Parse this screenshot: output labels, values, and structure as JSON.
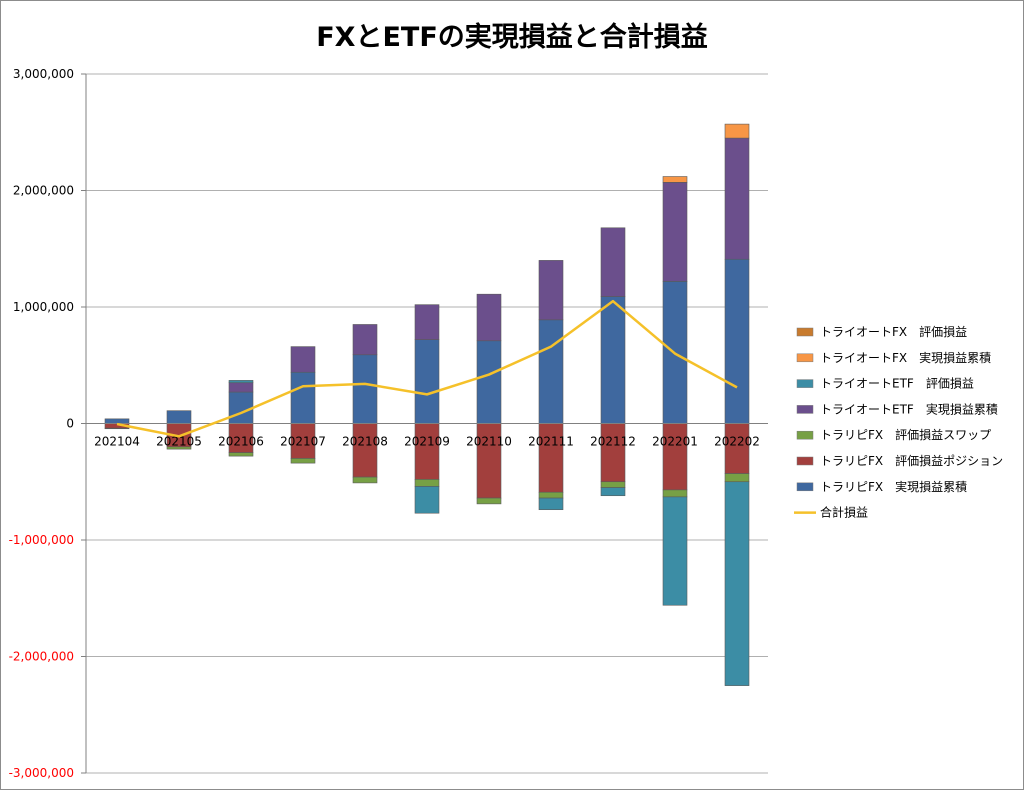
{
  "chart_data": {
    "type": "bar",
    "stacked": true,
    "title": "FXとETFの実現損益と合計損益",
    "xlabel": "",
    "ylabel": "",
    "ylim": [
      -3000000,
      3000000
    ],
    "y_ticks": [
      {
        "value": 3000000,
        "label": "3,000,000"
      },
      {
        "value": 2000000,
        "label": "2,000,000"
      },
      {
        "value": 1000000,
        "label": "1,000,000"
      },
      {
        "value": 0,
        "label": "0"
      },
      {
        "value": -1000000,
        "label": "-1,000,000"
      },
      {
        "value": -2000000,
        "label": "-2,000,000"
      },
      {
        "value": -3000000,
        "label": "-3,000,000"
      }
    ],
    "negative_tick_color": "#ff0000",
    "grid": true,
    "legend_position": "right",
    "categories": [
      "202104",
      "202105",
      "202106",
      "202107",
      "202108",
      "202109",
      "202110",
      "202111",
      "202112",
      "202201",
      "202202"
    ],
    "series": [
      {
        "name": "トライオートFX　評価損益",
        "kind": "bar",
        "color": "#c87b2e",
        "values": [
          0,
          0,
          0,
          0,
          0,
          0,
          0,
          0,
          0,
          0,
          0
        ]
      },
      {
        "name": "トライオートFX　実現損益累積",
        "kind": "bar",
        "color": "#f79646",
        "values": [
          0,
          0,
          0,
          0,
          0,
          0,
          0,
          0,
          0,
          50000,
          120000
        ]
      },
      {
        "name": "トライオートETF　評価損益",
        "kind": "bar",
        "color": "#3c8da5",
        "values": [
          0,
          0,
          20000,
          0,
          0,
          -230000,
          0,
          -100000,
          -70000,
          -930000,
          -1750000
        ]
      },
      {
        "name": "トライオートETF　実現損益累積",
        "kind": "bar",
        "color": "#6b4f8c",
        "values": [
          0,
          0,
          80000,
          220000,
          260000,
          300000,
          400000,
          510000,
          590000,
          850000,
          1040000
        ]
      },
      {
        "name": "トラリピFX　評価損益スワップ",
        "kind": "bar",
        "color": "#77a045",
        "values": [
          -5000,
          -20000,
          -30000,
          -40000,
          -50000,
          -60000,
          -50000,
          -50000,
          -50000,
          -60000,
          -70000
        ]
      },
      {
        "name": "トラリピFX　評価損益ポジション",
        "kind": "bar",
        "color": "#a23f3d",
        "values": [
          -40000,
          -200000,
          -250000,
          -300000,
          -460000,
          -480000,
          -640000,
          -590000,
          -500000,
          -570000,
          -430000
        ]
      },
      {
        "name": "トラリピFX　実現損益累積",
        "kind": "bar",
        "color": "#3f689f",
        "values": [
          40000,
          110000,
          270000,
          440000,
          590000,
          720000,
          710000,
          890000,
          1090000,
          1220000,
          1410000
        ]
      },
      {
        "name": "合計損益",
        "kind": "line",
        "color": "#f5c12a",
        "values": [
          -5000,
          -110000,
          90000,
          320000,
          340000,
          250000,
          420000,
          660000,
          1050000,
          600000,
          310000
        ]
      }
    ]
  }
}
